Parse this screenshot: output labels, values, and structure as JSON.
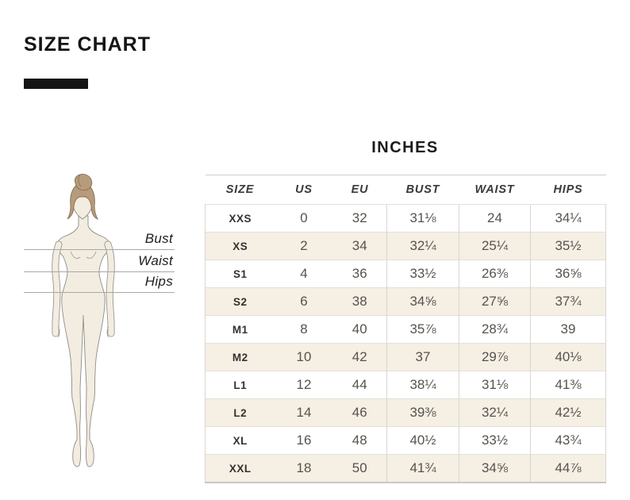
{
  "header": {
    "title": "SIZE CHART"
  },
  "section": {
    "unit_label": "INCHES"
  },
  "figure": {
    "description": "female-body-silhouette-with-measurement-lines",
    "labels": [
      "Bust",
      "Waist",
      "Hips"
    ]
  },
  "table": {
    "headers": [
      "SIZE",
      "US",
      "EU",
      "BUST",
      "WAIST",
      "HIPS"
    ],
    "rows": [
      [
        "XXS",
        "0",
        "32",
        "31⅛",
        "24",
        "34¼"
      ],
      [
        "XS",
        "2",
        "34",
        "32¼",
        "25¼",
        "35½"
      ],
      [
        "S1",
        "4",
        "36",
        "33½",
        "26⅜",
        "36⅝"
      ],
      [
        "S2",
        "6",
        "38",
        "34⅝",
        "27⅝",
        "37¾"
      ],
      [
        "M1",
        "8",
        "40",
        "35⅞",
        "28¾",
        "39"
      ],
      [
        "M2",
        "10",
        "42",
        "37",
        "29⅞",
        "40⅛"
      ],
      [
        "L1",
        "12",
        "44",
        "38¼",
        "31⅛",
        "41⅜"
      ],
      [
        "L2",
        "14",
        "46",
        "39⅜",
        "32¼",
        "42½"
      ],
      [
        "XL",
        "16",
        "48",
        "40½",
        "33½",
        "43¾"
      ],
      [
        "XXL",
        "18",
        "50",
        "41¾",
        "34⅝",
        "44⅞"
      ]
    ]
  },
  "chart_data": {
    "type": "table",
    "title": "SIZE CHART",
    "unit": "INCHES",
    "columns": [
      "SIZE",
      "US",
      "EU",
      "BUST",
      "WAIST",
      "HIPS"
    ],
    "sizes": [
      "XXS",
      "XS",
      "S1",
      "S2",
      "M1",
      "M2",
      "L1",
      "L2",
      "XL",
      "XXL"
    ],
    "series": [
      {
        "name": "US",
        "values": [
          0,
          2,
          4,
          6,
          8,
          10,
          12,
          14,
          16,
          18
        ]
      },
      {
        "name": "EU",
        "values": [
          32,
          34,
          36,
          38,
          40,
          42,
          44,
          46,
          48,
          50
        ]
      },
      {
        "name": "BUST",
        "values": [
          31.125,
          32.25,
          33.5,
          34.625,
          35.875,
          37,
          38.25,
          39.375,
          40.5,
          41.75
        ]
      },
      {
        "name": "WAIST",
        "values": [
          24,
          25.25,
          26.375,
          27.625,
          28.75,
          29.875,
          31.125,
          32.25,
          33.5,
          34.625
        ]
      },
      {
        "name": "HIPS",
        "values": [
          34.25,
          35.5,
          36.625,
          37.75,
          39,
          40.125,
          41.375,
          42.5,
          43.75,
          44.875
        ]
      }
    ]
  },
  "colors": {
    "accent_bar": "#141414",
    "row_stripe": "#f5efe4",
    "table_border": "#d9d6d0",
    "cell_text": "#56534e",
    "skin": "#f3ece1",
    "hair": "#b69b7c",
    "outline": "#8e8c86"
  }
}
